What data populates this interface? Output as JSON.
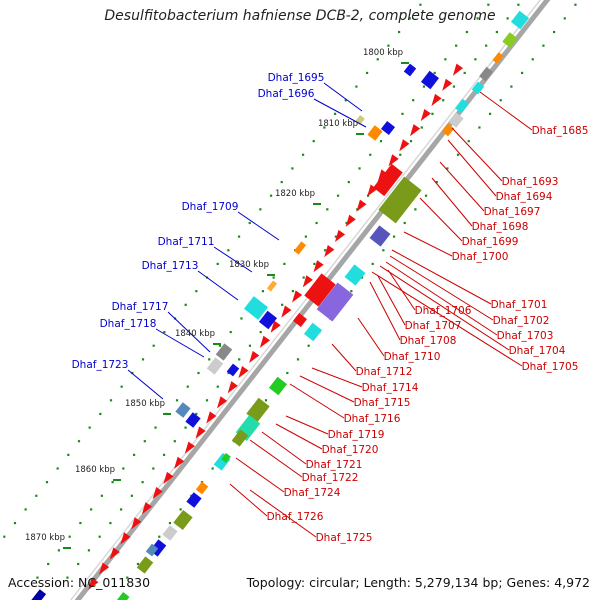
{
  "title": "Desulfitobacterium hafniense DCB-2, complete genome",
  "accession": "Accession: NC_011830",
  "topology": "Topology: circular; Length: 5,279,134 bp; Genes: 4,972",
  "kbp_ticks": [
    "1800 kbp",
    "1810 kbp",
    "1820 kbp",
    "1830 kbp",
    "1840 kbp",
    "1850 kbp",
    "1860 kbp",
    "1870 kbp"
  ],
  "left_labels": [
    "Dhaf_1695",
    "Dhaf_1696",
    "Dhaf_1709",
    "Dhaf_1711",
    "Dhaf_1713",
    "Dhaf_1717",
    "Dhaf_1718",
    "Dhaf_1723"
  ],
  "right_labels": [
    "Dhaf_1685",
    "Dhaf_1693",
    "Dhaf_1694",
    "Dhaf_1697",
    "Dhaf_1698",
    "Dhaf_1699",
    "Dhaf_1700",
    "Dhaf_1701",
    "Dhaf_1702",
    "Dhaf_1703",
    "Dhaf_1704",
    "Dhaf_1705",
    "Dhaf_1706",
    "Dhaf_1707",
    "Dhaf_1708",
    "Dhaf_1710",
    "Dhaf_1712",
    "Dhaf_1714",
    "Dhaf_1715",
    "Dhaf_1716",
    "Dhaf_1719",
    "Dhaf_1720",
    "Dhaf_1721",
    "Dhaf_1722",
    "Dhaf_1724",
    "Dhaf_1726",
    "Dhaf_1725"
  ],
  "colors": {
    "forward_label": "#0000cc",
    "reverse_label": "#cc0000",
    "backbone": "#888888",
    "gc_dots": "#1a8a1a"
  }
}
